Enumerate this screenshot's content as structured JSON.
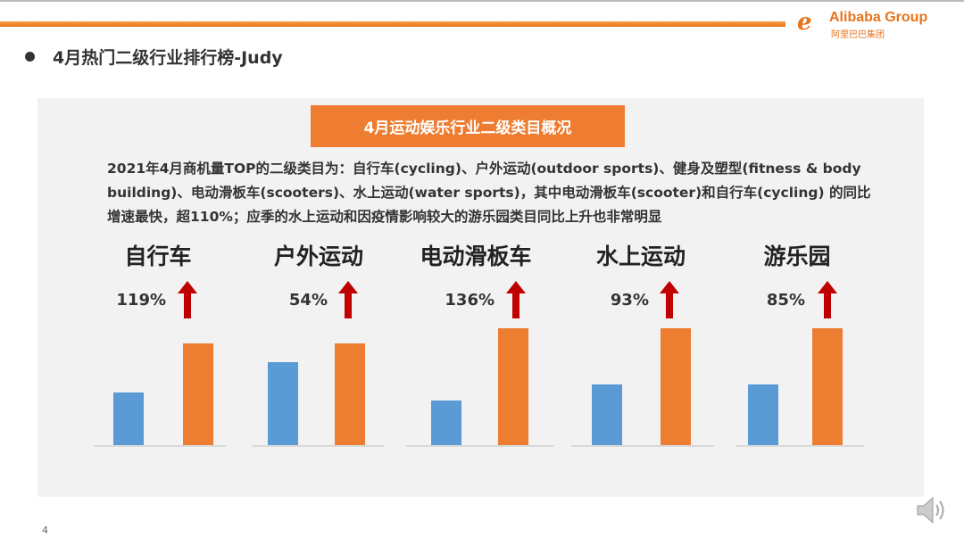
{
  "header": {
    "title": "4月热门二级行业排行榜-Judy",
    "logo_text_en": "Alibaba Group",
    "logo_text_cn": "阿里巴巴集团"
  },
  "panel": {
    "title": "4月运动娱乐行业二级类目概况",
    "description": "2021年4月商机量TOP的二级类目为：自行车(cycling)、户外运动(outdoor sports)、健身及塑型(fitness & body building)、电动滑板车(scooters)、水上运动(water sports)，其中电动滑板车(scooter)和自行车(cycling) 的同比增速最快，超110%；应季的水上运动和因疫情影响较大的游乐园类目同比上升也非常明显"
  },
  "chart_data": {
    "type": "bar",
    "categories": [
      "自行车",
      "户外运动",
      "电动滑板车",
      "水上运动",
      "游乐园"
    ],
    "growth_labels": [
      "119%",
      "54%",
      "136%",
      "93%",
      "85%"
    ],
    "series": [
      {
        "values": [
          45,
          71,
          38,
          52,
          52
        ],
        "color": "#5b9bd5"
      },
      {
        "values": [
          87,
          87,
          100,
          100,
          100
        ],
        "color": "#ed7d31"
      }
    ],
    "ylim": [
      0,
      100
    ],
    "axis_visible": false,
    "grid": false,
    "arrow_color": "#c00000"
  },
  "footer": {
    "page_number": "4"
  }
}
